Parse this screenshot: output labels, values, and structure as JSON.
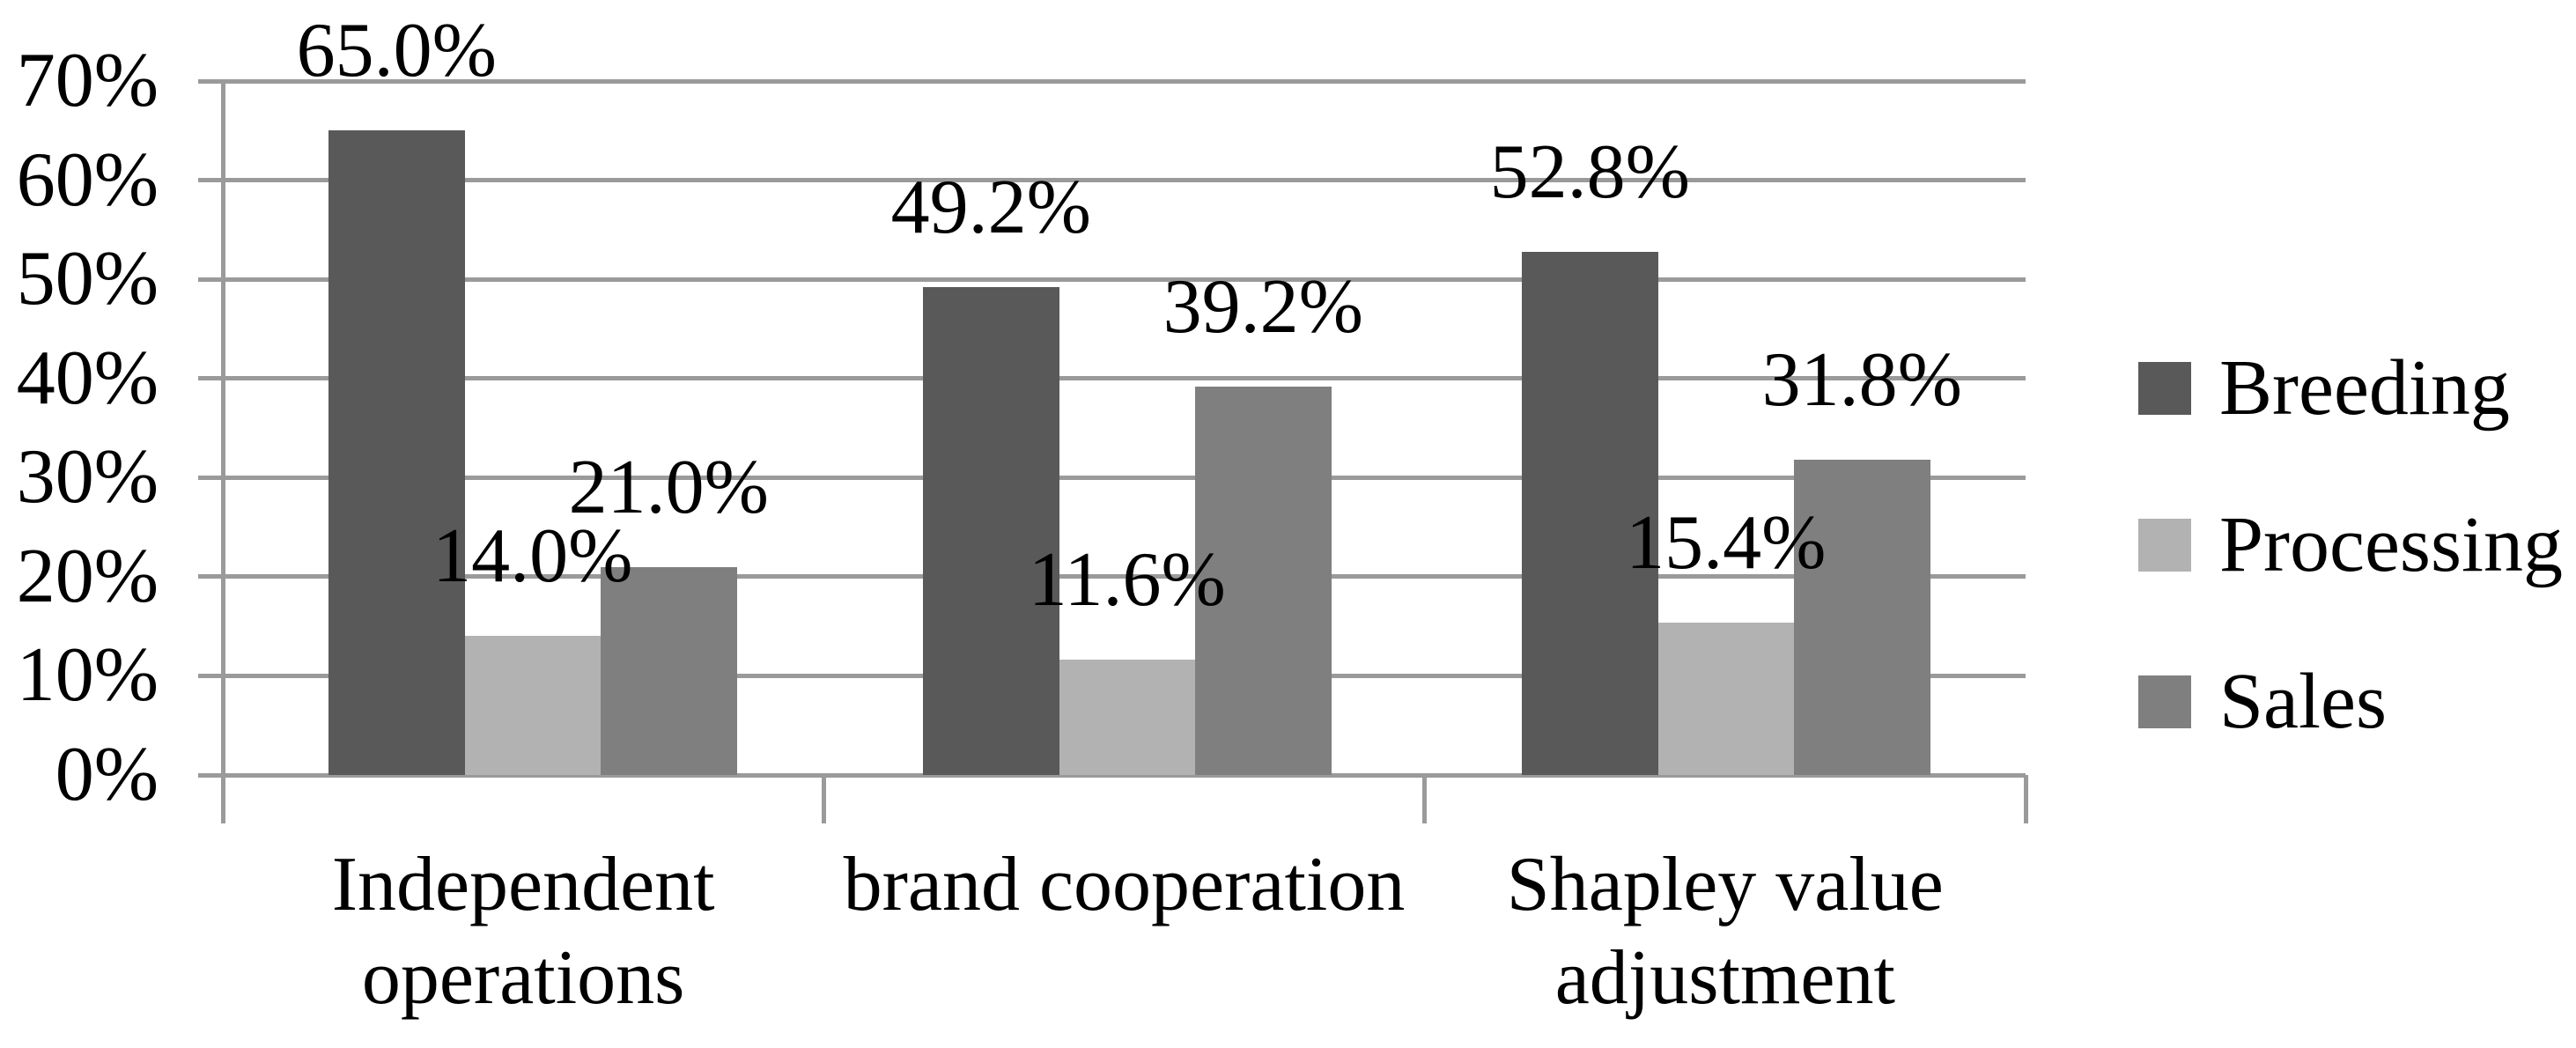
{
  "chart_data": {
    "type": "bar",
    "title": "",
    "categories": [
      "Independent operations",
      "brand cooperation",
      "Shapley value adjustment"
    ],
    "category_label_lines": [
      [
        "Independent",
        "operations"
      ],
      [
        "brand cooperation"
      ],
      [
        "Shapley value",
        "adjustment"
      ]
    ],
    "series": [
      {
        "name": "Breeding",
        "color": "#595959",
        "values": [
          65.0,
          49.2,
          52.8
        ],
        "labels": [
          "65.0%",
          "49.2%",
          "52.8%"
        ]
      },
      {
        "name": "Processing",
        "color": "#b2b2b2",
        "values": [
          14.0,
          11.6,
          15.4
        ],
        "labels": [
          "14.0%",
          "11.6%",
          "15.4%"
        ]
      },
      {
        "name": "Sales",
        "color": "#7f7f7f",
        "values": [
          21.0,
          39.2,
          31.8
        ],
        "labels": [
          "21.0%",
          "39.2%",
          "31.8%"
        ]
      }
    ],
    "y_axis": {
      "ticks": [
        "70%",
        "60%",
        "50%",
        "40%",
        "30%",
        "20%",
        "10%",
        "0%"
      ],
      "min": 0,
      "max": 70,
      "step": 10
    },
    "legend": {
      "position": "right",
      "entries": [
        "Breeding",
        "Processing",
        "Sales"
      ]
    },
    "grid": true,
    "layout_hints": {
      "grid_on": true,
      "data_labels_on": true,
      "bars_touch_within_group": true
    },
    "colors": {
      "grid": "#9a9a9a",
      "axis": "#9a9a9a",
      "text": "#000000",
      "background": "#ffffff"
    }
  }
}
